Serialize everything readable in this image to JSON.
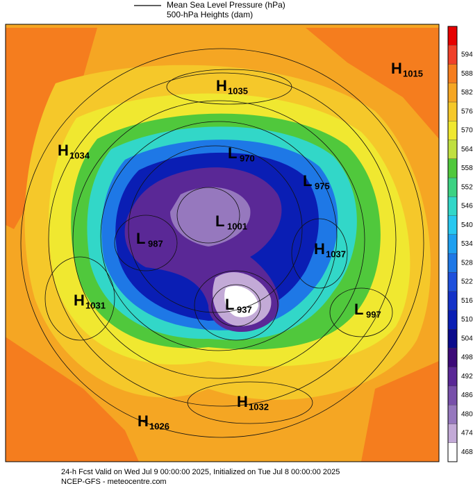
{
  "header": {
    "legend": [
      "Mean Sea Level Pressure (hPa)",
      "500-hPa Heights (dam)"
    ]
  },
  "colorbar": {
    "top_color": "#e60000",
    "levels": [
      {
        "value": 594,
        "color": "#f0402a"
      },
      {
        "value": 588,
        "color": "#f57d1e"
      },
      {
        "value": 582,
        "color": "#f5a623"
      },
      {
        "value": 576,
        "color": "#f5c82a"
      },
      {
        "value": 570,
        "color": "#f0e830"
      },
      {
        "value": 564,
        "color": "#c0e040"
      },
      {
        "value": 558,
        "color": "#50c83c"
      },
      {
        "value": 552,
        "color": "#3cd282"
      },
      {
        "value": 546,
        "color": "#32d7c8"
      },
      {
        "value": 540,
        "color": "#28c8f0"
      },
      {
        "value": 534,
        "color": "#1ea0f0"
      },
      {
        "value": 528,
        "color": "#1e78e6"
      },
      {
        "value": 522,
        "color": "#1e50dc"
      },
      {
        "value": 516,
        "color": "#1432c8"
      },
      {
        "value": 510,
        "color": "#0a1eb4"
      },
      {
        "value": 504,
        "color": "#0a0a8c"
      },
      {
        "value": 498,
        "color": "#3c0a78"
      },
      {
        "value": 492,
        "color": "#5a2896"
      },
      {
        "value": 486,
        "color": "#7850aa"
      },
      {
        "value": 480,
        "color": "#9678be"
      },
      {
        "value": 474,
        "color": "#c3aad7"
      },
      {
        "value": 468,
        "color": "#ffffff"
      }
    ]
  },
  "centers": [
    {
      "kind": "H",
      "value": 1015
    },
    {
      "kind": "H",
      "value": 1035
    },
    {
      "kind": "H",
      "value": 1034
    },
    {
      "kind": "L",
      "value": 970
    },
    {
      "kind": "L",
      "value": 975
    },
    {
      "kind": "L",
      "value": 987
    },
    {
      "kind": "L",
      "value": 1001
    },
    {
      "kind": "H",
      "value": 1037
    },
    {
      "kind": "H",
      "value": 1031
    },
    {
      "kind": "L",
      "value": 937
    },
    {
      "kind": "L",
      "value": 997
    },
    {
      "kind": "H",
      "value": 1032
    },
    {
      "kind": "H",
      "value": 1026
    }
  ],
  "footer": [
    "24-h Fcst Valid on Wed Jul  9 00:00:00 2025, Initialized on Tue Jul  8 00:00:00 2025",
    "NCEP-GFS - meteocentre.com"
  ]
}
